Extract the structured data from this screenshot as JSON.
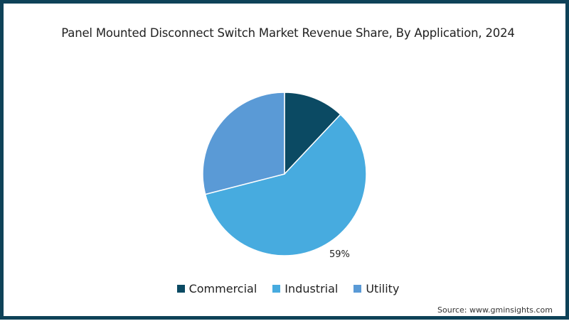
{
  "chart_data": {
    "type": "pie",
    "title": "Panel Mounted Disconnect Switch Market Revenue Share, By Application, 2024",
    "categories": [
      "Commercial",
      "Industrial",
      "Utility"
    ],
    "values": [
      12,
      59,
      29
    ],
    "unit": "%",
    "colors": [
      "#0b4a63",
      "#47abdf",
      "#5a9ad6"
    ],
    "data_labels": [
      {
        "category": "Industrial",
        "text": "59%"
      }
    ],
    "legend_position": "bottom",
    "start_angle": "12 o'clock, clockwise"
  },
  "title": "Panel Mounted Disconnect Switch Market Revenue Share, By Application, 2024",
  "label_industrial": "59%",
  "legend": [
    {
      "label": "Commercial",
      "color": "#0b4a63"
    },
    {
      "label": "Industrial",
      "color": "#47abdf"
    },
    {
      "label": "Utility",
      "color": "#5a9ad6"
    }
  ],
  "source": "Source: www.gminsights.com",
  "frame_color": "#0e4258"
}
